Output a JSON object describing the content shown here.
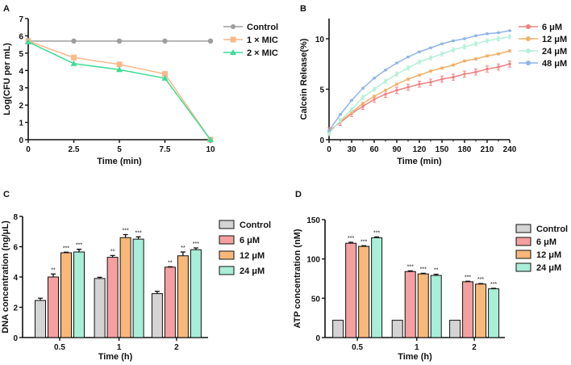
{
  "chart_data": [
    {
      "panel": "A",
      "type": "line",
      "xlabel": "Time (min)",
      "ylabel": "Log(CFU per mL)",
      "x": [
        0,
        2.5,
        5,
        7.5,
        10
      ],
      "xticks": [
        "0",
        "2.5",
        "5",
        "7.5",
        "10"
      ],
      "yticks": [
        "0",
        "1",
        "2",
        "3",
        "4",
        "5",
        "6",
        "7"
      ],
      "xlim": [
        0,
        10
      ],
      "ylim": [
        0,
        7
      ],
      "legend": "right",
      "series": [
        {
          "name": "Control",
          "values": [
            5.7,
            5.7,
            5.7,
            5.7,
            5.7
          ],
          "color": "#9e9e9e",
          "marker": "circle"
        },
        {
          "name": "1 × MIC",
          "values": [
            5.7,
            4.75,
            4.35,
            3.8,
            0
          ],
          "color": "#f9b98a",
          "marker": "square"
        },
        {
          "name": "2 × MIC",
          "values": [
            5.65,
            4.4,
            4.05,
            3.55,
            0
          ],
          "color": "#3ddc97",
          "marker": "triangle"
        }
      ]
    },
    {
      "panel": "B",
      "type": "line",
      "xlabel": "Time (min)",
      "ylabel": "Calcein Release(%)",
      "x": [
        0,
        15,
        30,
        45,
        60,
        75,
        90,
        105,
        120,
        135,
        150,
        165,
        180,
        195,
        210,
        225,
        240
      ],
      "xticks": [
        "0",
        "30",
        "60",
        "90",
        "120",
        "150",
        "180",
        "210",
        "240"
      ],
      "yticks": [
        "0",
        "5",
        "10"
      ],
      "xlim": [
        0,
        240
      ],
      "ylim": [
        0,
        12
      ],
      "legend": "right",
      "series": [
        {
          "name": "6 μM",
          "color": "#f08080",
          "values": [
            0.9,
            1.7,
            2.6,
            3.3,
            4.0,
            4.5,
            4.9,
            5.2,
            5.5,
            5.7,
            6.0,
            6.2,
            6.5,
            6.7,
            7.0,
            7.2,
            7.5
          ],
          "error": 0.3
        },
        {
          "name": "12 μM",
          "color": "#f5b06a",
          "values": [
            0.8,
            1.8,
            2.7,
            3.6,
            4.3,
            4.9,
            5.5,
            6.0,
            6.4,
            6.8,
            7.1,
            7.4,
            7.8,
            8.0,
            8.3,
            8.5,
            8.8
          ],
          "error": 0.1
        },
        {
          "name": "24 μM",
          "color": "#b4f0d8",
          "values": [
            0.6,
            1.9,
            3.0,
            4.2,
            5.0,
            5.8,
            6.5,
            7.1,
            7.7,
            8.1,
            8.5,
            8.9,
            9.2,
            9.5,
            9.8,
            10.0,
            10.2
          ],
          "error": 0.2
        },
        {
          "name": "48 μM",
          "color": "#8fb4e8",
          "values": [
            0.9,
            2.5,
            3.9,
            5.1,
            6.1,
            6.9,
            7.6,
            8.2,
            8.7,
            9.1,
            9.5,
            9.8,
            10.0,
            10.3,
            10.5,
            10.6,
            10.8
          ],
          "error": 0.05
        }
      ]
    },
    {
      "panel": "C",
      "type": "bar",
      "xlabel": "Time (h)",
      "ylabel": "DNA concentration (ng/μL)",
      "categories": [
        "0.5",
        "1",
        "2"
      ],
      "yticks": [
        "0",
        "2",
        "4",
        "6",
        "8"
      ],
      "ylim": [
        0,
        8
      ],
      "legend": "right",
      "series": [
        {
          "name": "Control",
          "color": "#d4d4d4",
          "values": [
            2.45,
            3.9,
            2.9
          ],
          "errors": [
            0.15,
            0.08,
            0.15
          ],
          "significance": [
            "",
            "",
            ""
          ]
        },
        {
          "name": "6 μM",
          "color": "#f4a0a0",
          "values": [
            4.0,
            5.3,
            4.65
          ],
          "errors": [
            0.2,
            0.12,
            0.03
          ],
          "significance": [
            "**",
            "**",
            "**"
          ]
        },
        {
          "name": "12 μM",
          "color": "#f7b87a",
          "values": [
            5.6,
            6.6,
            5.4
          ],
          "errors": [
            0.04,
            0.2,
            0.25
          ],
          "significance": [
            "***",
            "***",
            "**"
          ]
        },
        {
          "name": "24 μM",
          "color": "#a8eed8",
          "values": [
            5.65,
            6.5,
            5.8
          ],
          "errors": [
            0.18,
            0.15,
            0.12
          ],
          "significance": [
            "***",
            "***",
            "***"
          ]
        }
      ]
    },
    {
      "panel": "D",
      "type": "bar",
      "xlabel": "Time (h)",
      "ylabel": "ATP concentration (nM)",
      "categories": [
        "0.5",
        "1",
        "2"
      ],
      "yticks": [
        "0",
        "50",
        "100",
        "150"
      ],
      "ylim": [
        0,
        150
      ],
      "legend": "right",
      "series": [
        {
          "name": "Control",
          "color": "#d4d4d4",
          "values": [
            22,
            22,
            22
          ],
          "errors": [
            0,
            0,
            0
          ],
          "significance": [
            "",
            "",
            ""
          ]
        },
        {
          "name": "6 μM",
          "color": "#f4a0a0",
          "values": [
            120,
            84,
            71
          ],
          "errors": [
            1.2,
            0.8,
            0.6
          ],
          "significance": [
            "***",
            "***",
            "***"
          ]
        },
        {
          "name": "12 μM",
          "color": "#f7b87a",
          "values": [
            116,
            81,
            68
          ],
          "errors": [
            0.8,
            0.8,
            0.7
          ],
          "significance": [
            "***",
            "***",
            "***"
          ]
        },
        {
          "name": "24 μM",
          "color": "#a8eed8",
          "values": [
            127,
            79,
            62
          ],
          "errors": [
            1.0,
            1.5,
            0.6
          ],
          "significance": [
            "***",
            "**",
            "***"
          ]
        }
      ]
    }
  ]
}
